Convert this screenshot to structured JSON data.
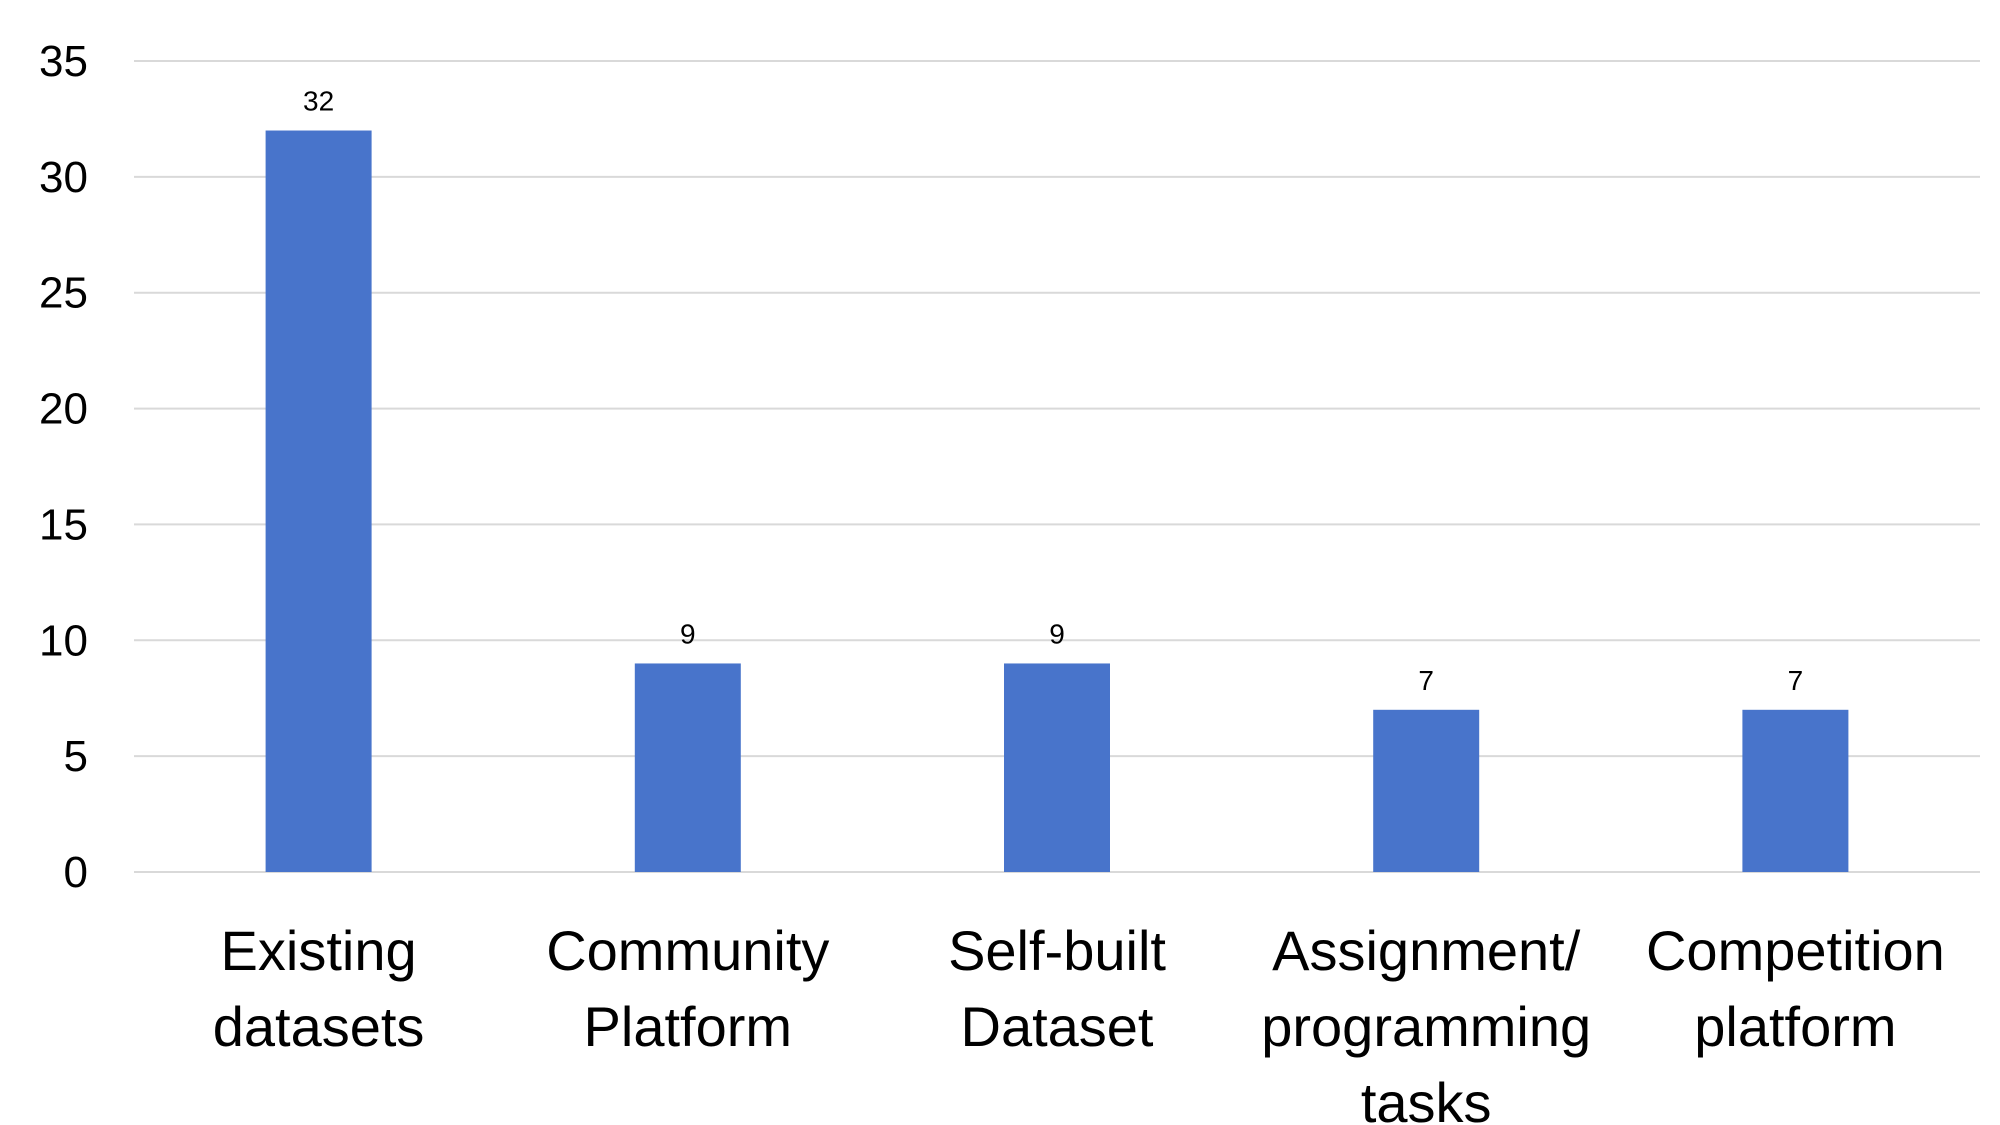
{
  "chart_data": {
    "type": "bar",
    "categories": [
      [
        "Existing",
        "datasets"
      ],
      [
        "Community",
        "Platform"
      ],
      [
        "Self-built",
        "Dataset"
      ],
      [
        "Assignment/",
        "programming",
        "tasks"
      ],
      [
        "Competition",
        "platform"
      ]
    ],
    "values": [
      32,
      9,
      9,
      7,
      7
    ],
    "data_labels": [
      "32",
      "9",
      "9",
      "7",
      "7"
    ],
    "title": "",
    "xlabel": "",
    "ylabel": "",
    "ylim": [
      0,
      35
    ],
    "yticks": [
      0,
      5,
      10,
      15,
      20,
      25,
      30,
      35
    ],
    "ytick_labels": [
      "0",
      "5",
      "10",
      "15",
      "20",
      "25",
      "30",
      "35"
    ],
    "grid": "horizontal",
    "legend": "none",
    "bar_color": "#4874cb"
  }
}
